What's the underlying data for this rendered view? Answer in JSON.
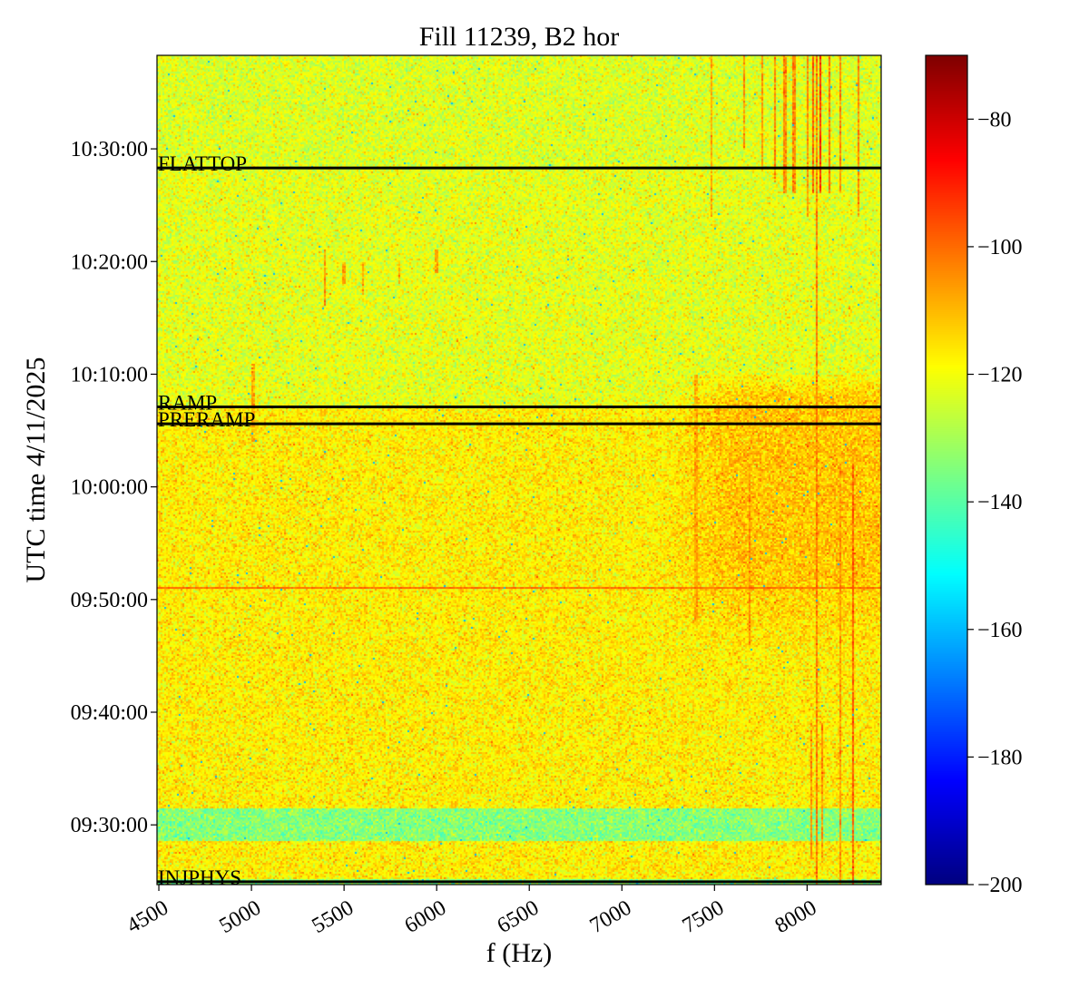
{
  "chart_data": {
    "type": "heatmap",
    "title": "Fill 11239, B2 hor",
    "xlabel": "f (Hz)",
    "ylabel": "UTC time 4/11/2025",
    "xlim": [
      4490,
      8400
    ],
    "x_ticks": [
      4500,
      5000,
      5500,
      6000,
      6500,
      7000,
      7500,
      8000
    ],
    "x_tick_labels": [
      "4500",
      "5000",
      "5500",
      "6000",
      "6500",
      "7000",
      "7500",
      "8000"
    ],
    "ylim_minutes_after_0900": [
      24.7,
      98.3
    ],
    "y_ticks_minutes_after_0900": [
      30,
      40,
      50,
      60,
      70,
      80,
      90
    ],
    "y_tick_labels": [
      "09:30:00",
      "09:40:00",
      "09:50:00",
      "10:00:00",
      "10:10:00",
      "10:20:00",
      "10:30:00"
    ],
    "colorbar": {
      "colormap": "jet",
      "range": [
        -200,
        -70
      ],
      "ticks": [
        -80,
        -100,
        -120,
        -140,
        -160,
        -180,
        -200
      ],
      "tick_labels": [
        "−80",
        "−100",
        "−120",
        "−140",
        "−160",
        "−180",
        "−200"
      ]
    },
    "events": [
      {
        "label": "FLATTOP",
        "minute": 88.3
      },
      {
        "label": "RAMP",
        "minute": 67.1
      },
      {
        "label": "PRERAMP",
        "minute": 65.6
      },
      {
        "label": "INJPHYS",
        "minute": 24.95
      }
    ],
    "background_levels_db": [
      {
        "from": 88.3,
        "to": 98.3,
        "level": -123
      },
      {
        "from": 67.1,
        "to": 88.3,
        "level": -122
      },
      {
        "from": 31.4,
        "to": 67.1,
        "level": -117
      },
      {
        "from": 28.6,
        "to": 31.4,
        "level": -134
      },
      {
        "from": 25.2,
        "to": 28.6,
        "level": -117
      },
      {
        "from": 24.7,
        "to": 25.2,
        "level": -134
      }
    ],
    "broadband_region": {
      "f": [
        7200,
        8400
      ],
      "from": 45,
      "to": 70,
      "level": -110
    },
    "horizontal_lines": [
      {
        "minute": 51.1,
        "level": -100
      }
    ],
    "vertical_lines": [
      {
        "f": 8050,
        "from": 24.7,
        "to": 98.3,
        "level": -102
      },
      {
        "f": 8070,
        "from": 86,
        "to": 98.3,
        "level": -92
      },
      {
        "f": 8030,
        "from": 86,
        "to": 98.3,
        "level": -98
      },
      {
        "f": 8000,
        "from": 84,
        "to": 98.3,
        "level": -104
      },
      {
        "f": 8250,
        "from": 24.7,
        "to": 62,
        "level": -98
      },
      {
        "f": 8180,
        "from": 24.7,
        "to": 62,
        "level": -106
      },
      {
        "f": 7690,
        "from": 46,
        "to": 62,
        "level": -104
      },
      {
        "f": 7400,
        "from": 48,
        "to": 70,
        "level": -108
      },
      {
        "f": 7480,
        "from": 84,
        "to": 98.3,
        "level": -108
      },
      {
        "f": 7660,
        "from": 90,
        "to": 98.3,
        "level": -106
      },
      {
        "f": 7760,
        "from": 88,
        "to": 98.3,
        "level": -106
      },
      {
        "f": 7830,
        "from": 87,
        "to": 98.3,
        "level": -104
      },
      {
        "f": 7880,
        "from": 86,
        "to": 98.3,
        "level": -104
      },
      {
        "f": 7930,
        "from": 86,
        "to": 98.3,
        "level": -104
      },
      {
        "f": 8120,
        "from": 86,
        "to": 98.3,
        "level": -102
      },
      {
        "f": 8180,
        "from": 86,
        "to": 98.3,
        "level": -104
      },
      {
        "f": 8280,
        "from": 84,
        "to": 98.3,
        "level": -104
      },
      {
        "f": 8020,
        "from": 27,
        "to": 39,
        "level": -104
      },
      {
        "f": 8080,
        "from": 27,
        "to": 39,
        "level": -104
      },
      {
        "f": 5400,
        "from": 76,
        "to": 81,
        "level": -106
      },
      {
        "f": 5500,
        "from": 78,
        "to": 80,
        "level": -108
      },
      {
        "f": 5600,
        "from": 77,
        "to": 80,
        "level": -108
      },
      {
        "f": 5800,
        "from": 78,
        "to": 80,
        "level": -108
      },
      {
        "f": 6000,
        "from": 79,
        "to": 81,
        "level": -108
      },
      {
        "f": 5010,
        "from": 64,
        "to": 71,
        "level": -108
      }
    ],
    "noise_std_db": 5
  }
}
